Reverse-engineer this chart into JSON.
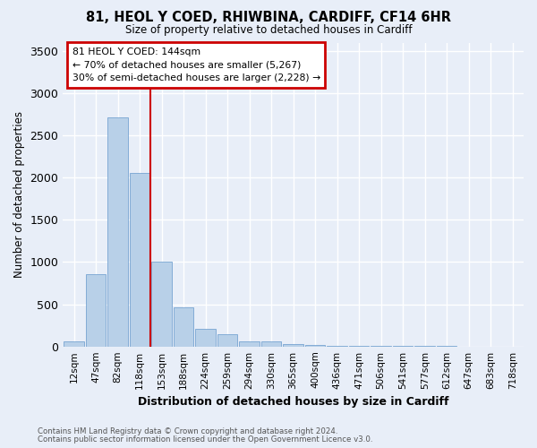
{
  "title": "81, HEOL Y COED, RHIWBINA, CARDIFF, CF14 6HR",
  "subtitle": "Size of property relative to detached houses in Cardiff",
  "xlabel": "Distribution of detached houses by size in Cardiff",
  "ylabel": "Number of detached properties",
  "categories": [
    "12sqm",
    "47sqm",
    "82sqm",
    "118sqm",
    "153sqm",
    "188sqm",
    "224sqm",
    "259sqm",
    "294sqm",
    "330sqm",
    "365sqm",
    "400sqm",
    "436sqm",
    "471sqm",
    "506sqm",
    "541sqm",
    "577sqm",
    "612sqm",
    "647sqm",
    "683sqm",
    "718sqm"
  ],
  "values": [
    55,
    855,
    2710,
    2055,
    1005,
    460,
    210,
    140,
    55,
    55,
    30,
    20,
    10,
    8,
    5,
    3,
    2,
    2,
    1,
    1,
    0
  ],
  "bar_color": "#b8d0e8",
  "bar_edge_color": "#6699cc",
  "bg_color": "#e8eef8",
  "grid_color": "#ffffff",
  "vline_color": "#cc0000",
  "annotation_box_color": "#cc0000",
  "annotation_line1": "81 HEOL Y COED: 144sqm",
  "annotation_line2": "← 70% of detached houses are smaller (5,267)",
  "annotation_line3": "30% of semi-detached houses are larger (2,228) →",
  "footer_line1": "Contains HM Land Registry data © Crown copyright and database right 2024.",
  "footer_line2": "Contains public sector information licensed under the Open Government Licence v3.0.",
  "ylim": [
    0,
    3600
  ],
  "yticks": [
    0,
    500,
    1000,
    1500,
    2000,
    2500,
    3000,
    3500
  ],
  "vline_pos": 3.5
}
